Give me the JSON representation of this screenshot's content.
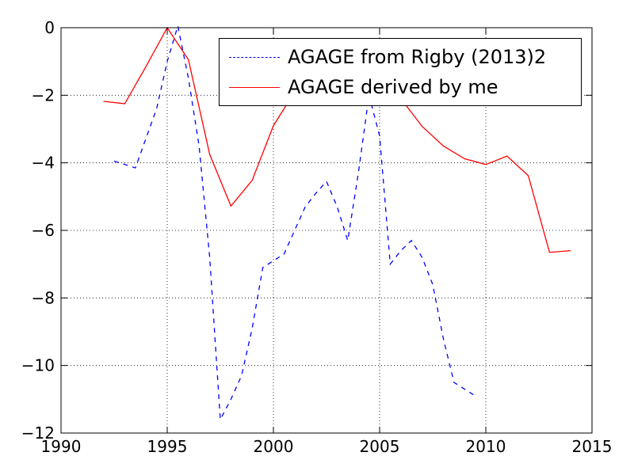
{
  "chart_data": {
    "type": "line",
    "title": "",
    "xlabel": "",
    "ylabel": "",
    "xlim": [
      1990,
      2015
    ],
    "ylim": [
      -12,
      0
    ],
    "xticks": [
      1990,
      1995,
      2000,
      2005,
      2010,
      2015
    ],
    "xtick_labels": [
      "1990",
      "1995",
      "2000",
      "2005",
      "2010",
      "2015"
    ],
    "yticks": [
      0,
      -2,
      -4,
      -6,
      -8,
      -10,
      -12
    ],
    "ytick_labels": [
      "0",
      "−2",
      "−4",
      "−6",
      "−8",
      "−10",
      "−12"
    ],
    "grid": true,
    "legend_position": "top-right",
    "series": [
      {
        "name": "AGAGE from Rigby (2013)2",
        "color": "#0000ff",
        "style": "dashed",
        "x": [
          1992.5,
          1993.5,
          1994.5,
          1995,
          1995.5,
          1996,
          1996.5,
          1997,
          1997.5,
          1998,
          1998.5,
          1999,
          1999.5,
          2000,
          2000.5,
          2001,
          2001.5,
          2002,
          2002.5,
          2003,
          2003.5,
          2004,
          2004.5,
          2005,
          2005.5,
          2006,
          2006.5,
          2007,
          2007.5,
          2008,
          2008.5,
          2009,
          2009.5
        ],
        "y": [
          -3.95,
          -4.15,
          -2.4,
          -1.0,
          0.05,
          -1.5,
          -3.5,
          -6.8,
          -11.6,
          -11.0,
          -10.3,
          -8.9,
          -7.1,
          -6.9,
          -6.7,
          -6.0,
          -5.3,
          -4.9,
          -4.55,
          -5.3,
          -6.3,
          -4.3,
          -2.0,
          -3.2,
          -7.0,
          -6.6,
          -6.3,
          -6.8,
          -7.6,
          -9.2,
          -10.5,
          -10.7,
          -10.9
        ]
      },
      {
        "name": "AGAGE derived by me",
        "color": "#ff0000",
        "style": "solid",
        "x": [
          1992,
          1993,
          1994,
          1995,
          1996,
          1997,
          1998,
          1999,
          2000,
          2001,
          2002,
          2003,
          2004,
          2005,
          2006,
          2007,
          2008,
          2009,
          2010,
          2011,
          2012,
          2013,
          2014
        ],
        "y": [
          -2.18,
          -2.25,
          -1.15,
          0.0,
          -0.95,
          -3.75,
          -5.28,
          -4.52,
          -2.9,
          -1.9,
          -1.5,
          -1.25,
          -1.1,
          -1.3,
          -2.1,
          -2.92,
          -3.5,
          -3.88,
          -4.05,
          -3.8,
          -4.38,
          -6.65,
          -6.6
        ]
      }
    ]
  }
}
